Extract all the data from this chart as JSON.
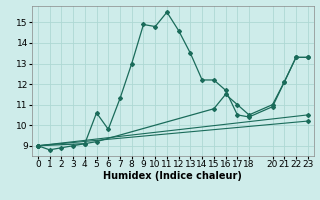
{
  "xlabel": "Humidex (Indice chaleur)",
  "ylabel": "",
  "background_color": "#ceecea",
  "grid_color": "#aed8d4",
  "line_color": "#1a6b5a",
  "series": [
    {
      "x": [
        0,
        1,
        2,
        3,
        4,
        5,
        6,
        7,
        8,
        9,
        10,
        11,
        12,
        13,
        14,
        15,
        16,
        17,
        18,
        20,
        21,
        22,
        23
      ],
      "y": [
        9.0,
        8.8,
        8.9,
        9.0,
        9.1,
        10.6,
        9.8,
        11.3,
        13.0,
        14.9,
        14.8,
        15.5,
        14.6,
        13.5,
        12.2,
        12.2,
        11.7,
        10.5,
        10.4,
        10.9,
        12.1,
        13.3,
        13.3
      ]
    },
    {
      "x": [
        0,
        4,
        5,
        15,
        16,
        17,
        18,
        20,
        21,
        22,
        23
      ],
      "y": [
        9.0,
        9.1,
        9.2,
        10.8,
        11.5,
        11.0,
        10.5,
        11.0,
        12.1,
        13.3,
        13.3
      ]
    },
    {
      "x": [
        0,
        23
      ],
      "y": [
        9.0,
        10.5
      ]
    },
    {
      "x": [
        0,
        23
      ],
      "y": [
        9.0,
        10.2
      ]
    }
  ],
  "xlim": [
    -0.5,
    23.5
  ],
  "ylim": [
    8.5,
    15.8
  ],
  "xticks": [
    0,
    1,
    2,
    3,
    4,
    5,
    6,
    7,
    8,
    9,
    10,
    11,
    12,
    13,
    14,
    15,
    16,
    17,
    18,
    20,
    21,
    22,
    23
  ],
  "yticks": [
    9,
    10,
    11,
    12,
    13,
    14,
    15
  ],
  "fontsize_label": 7,
  "fontsize_tick": 6.5
}
